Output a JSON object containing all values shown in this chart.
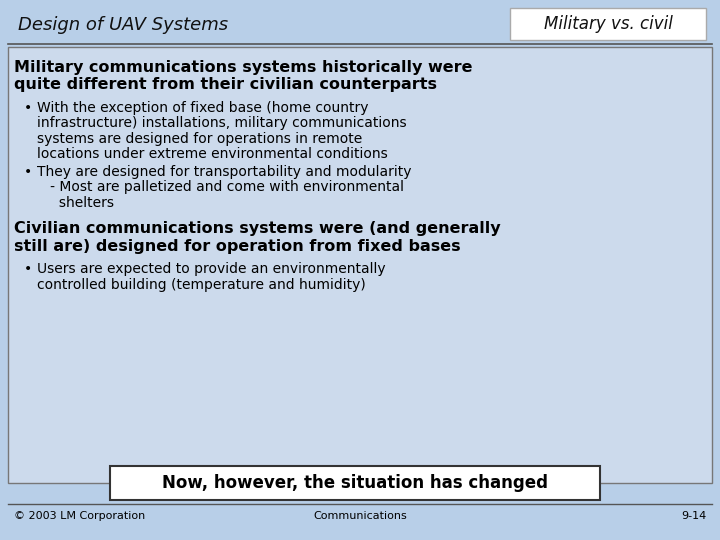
{
  "slide_bg": "#b8cfe8",
  "title_left": "Design of UAV Systems",
  "title_right": "Military vs. civil",
  "title_right_bg": "#ffffff",
  "title_right_border": "#aaaaaa",
  "header_line_color": "#555555",
  "main_content_bg": "#ccdaec",
  "main_content_border": "#777777",
  "heading1_line1": "Military communications systems historically were",
  "heading1_line2": "quite different from their civilian counterparts",
  "bullet1a_line1": "With the exception of fixed base (home country",
  "bullet1a_line2": "infrastructure) installations, military communications",
  "bullet1a_line3": "systems are designed for operations in remote",
  "bullet1a_line4": "locations under extreme environmental conditions",
  "bullet1b_line1": "They are designed for transportability and modularity",
  "bullet1b_line2": "   - Most are palletized and come with environmental",
  "bullet1b_line3": "     shelters",
  "heading2_line1": "Civilian communications systems were (and generally",
  "heading2_line2": "still are) designed for operation from fixed bases",
  "bullet2a_line1": "Users are expected to provide an environmentally",
  "bullet2a_line2": "controlled building (temperature and humidity)",
  "callout_text": "Now, however, the situation has changed",
  "callout_bg": "#ffffff",
  "callout_border": "#333333",
  "footer_left": "© 2003 LM Corporation",
  "footer_center": "Communications",
  "footer_right": "9-14",
  "footer_line_color": "#555555"
}
